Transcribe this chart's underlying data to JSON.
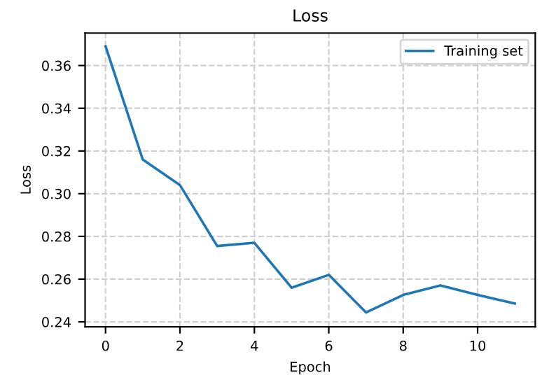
{
  "chart_data": {
    "type": "line",
    "title": "Loss",
    "xlabel": "Epoch",
    "ylabel": "Loss",
    "x": [
      0,
      1,
      2,
      3,
      4,
      5,
      6,
      7,
      8,
      9,
      10,
      11
    ],
    "series": [
      {
        "name": "Training set",
        "color": "#1f77b4",
        "values": [
          0.369,
          0.316,
          0.304,
          0.2755,
          0.277,
          0.256,
          0.262,
          0.2444,
          0.2526,
          0.257,
          0.2526,
          0.2486
        ]
      }
    ],
    "xlim": [
      -0.55,
      11.55
    ],
    "xticks": [
      0,
      2,
      4,
      6,
      8,
      10
    ],
    "ylim": [
      0.2377,
      0.3752
    ],
    "yticks": [
      0.24,
      0.26,
      0.28,
      {
        "value": 0.3,
        "label": "0.30"
      },
      0.32,
      0.34,
      0.36
    ],
    "grid": true,
    "legend": "top right"
  }
}
